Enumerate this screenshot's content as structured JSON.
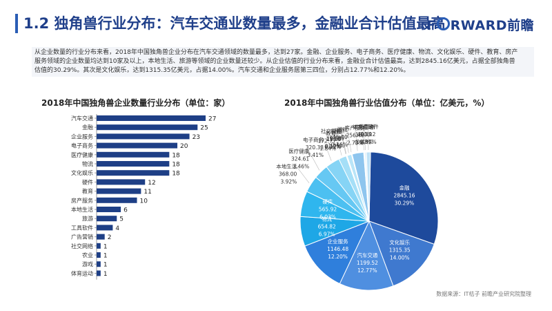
{
  "header": {
    "title": "1.2 独角兽行业分布：汽车交通业数量最多，金融业合计估值最高",
    "logo_left": "F",
    "logo_right": "RWARD前瞻"
  },
  "intro": {
    "line1": "从企业数量的行业分布来看，2018年中国独角兽企业分布在汽车交通领域的数量最多，达到27家。金融、企业服务、电子商务、医疗健康、物流、文化娱乐、硬件、教育、房产",
    "line2": "服务领域的企业数量均达到10家及以上，本地生活、旅游等领域的企业数量还较少。从企业估值的行业分布来看，金融业合计估值最高，达到2845.16亿美元，占据全部独角兽",
    "line3": "估值的30.29%。其次是文化娱乐，达到1315.35亿美元，占据14.00%。汽车交通和企业服务居第三四位，分别占12.77%和12.20%。"
  },
  "source": "数据来源：IT桔子 前瞻产业研究院整理",
  "colors": {
    "bar": "#1e3f86",
    "title": "#1f3f8a"
  },
  "chart_data": [
    {
      "type": "bar",
      "orientation": "horizontal",
      "title": "2018年中国独角兽企业数量行业分布（单位：家）",
      "categories": [
        "汽车交通",
        "金融",
        "企业服务",
        "电子商务",
        "医疗健康",
        "物流",
        "文化娱乐",
        "硬件",
        "教育",
        "房产服务",
        "本地生活",
        "旅游",
        "工具软件",
        "广告营销",
        "社交网络",
        "农业",
        "游戏",
        "体育运动"
      ],
      "values": [
        27,
        25,
        23,
        20,
        18,
        18,
        18,
        12,
        11,
        10,
        6,
        5,
        4,
        2,
        1,
        1,
        1,
        1
      ],
      "xlim": [
        0,
        30
      ]
    },
    {
      "type": "pie",
      "title": "2018年中国独角兽行业估值分布（单位：亿美元，%）",
      "slices": [
        {
          "label": "金融",
          "value": 2845.16,
          "percent": "30.29%",
          "color": "#1e4a9c"
        },
        {
          "label": "文化娱乐",
          "value": 1315.35,
          "percent": "14.00%",
          "color": "#3f79cf"
        },
        {
          "label": "汽车交通",
          "value": 1199.52,
          "percent": "12.77%",
          "color": "#4f8fe0"
        },
        {
          "label": "企业服务",
          "value": 1146.48,
          "percent": "12.20%",
          "color": "#2f7fdc"
        },
        {
          "label": "物流",
          "value": 654.82,
          "percent": "6.97%",
          "color": "#1ea7e6"
        },
        {
          "label": "硬件",
          "value": 565.92,
          "percent": "6.03%",
          "color": "#2fb6ee"
        },
        {
          "label": "本地生活",
          "value": 368.0,
          "percent": "3.92%",
          "color": "#4cc0f1"
        },
        {
          "label": "医疗健康",
          "value": 324.61,
          "percent": "3.46%",
          "color": "#66c8f3"
        },
        {
          "label": "电子商务",
          "value": 320.33,
          "percent": "3.41%",
          "color": "#86d4f5"
        },
        {
          "label": "教育",
          "value": 172.77,
          "percent": "1.84%",
          "color": "#a5dff7"
        },
        {
          "label": "农业",
          "value": 11.38,
          "percent": "0.12%",
          "color": "#c5e9f9"
        },
        {
          "label": "社交网络",
          "value": 10.0,
          "percent": "0.11%",
          "color": "#cfeefb"
        },
        {
          "label": "旅游",
          "value": 98.85,
          "percent": "1.05%",
          "color": "#b9e5f8"
        },
        {
          "label": "游戏",
          "value": 15.0,
          "percent": "0.16%",
          "color": "#d6f0fb"
        },
        {
          "label": "房产服务",
          "value": 256.46,
          "percent": "2.73%",
          "color": "#8ec5ee"
        },
        {
          "label": "体育运动",
          "value": 18.0,
          "percent": "0.19%",
          "color": "#dbeffc"
        },
        {
          "label": "广告营销",
          "value": 40.39,
          "percent": "0.43%",
          "color": "#e3f3fc"
        },
        {
          "label": "工具软件",
          "value": 91.12,
          "percent": "0.97%",
          "color": "#bfe2f7"
        }
      ]
    }
  ]
}
